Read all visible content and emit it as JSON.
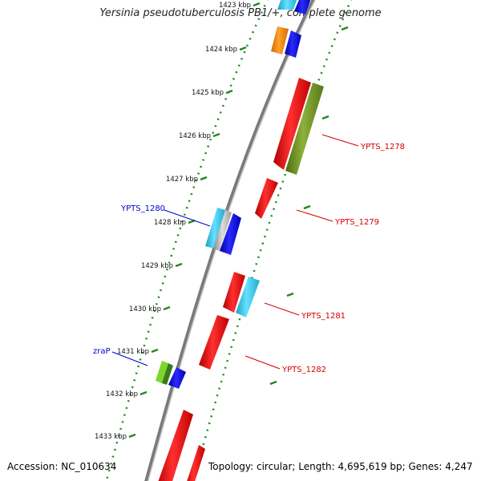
{
  "title": "Yersinia pseudotuberculosis PB1/+, complete genome",
  "accession": "Accession: NC_010634",
  "topology": "Topology: circular; Length: 4,695,619 bp; Genes: 4,247",
  "ticks": [
    "1423 kbp",
    "1424 kbp",
    "1425 kbp",
    "1426 kbp",
    "1427 kbp",
    "1428 kbp",
    "1429 kbp",
    "1430 kbp",
    "1431 kbp",
    "1432 kbp",
    "1433 kbp"
  ],
  "gene_labels": {
    "ypts_1278": "YPTS_1278",
    "ypts_1279": "YPTS_1279",
    "ypts_1280": "YPTS_1280",
    "ypts_1281": "YPTS_1281",
    "ypts_1282": "YPTS_1282",
    "zrap": "zraP"
  },
  "colors": {
    "backbone": "#8c8c8c",
    "dotted_ring": "#1f8a1f",
    "forward_label": "#d40000",
    "reverse_label": "#0000cc",
    "gene_red": "#ff1010",
    "gene_blue": "#1010ee",
    "gene_cyan": "#33ccee",
    "gene_olive": "#6b8e23",
    "gene_orange": "#ff8c00",
    "gene_green": "#7cd62a"
  }
}
